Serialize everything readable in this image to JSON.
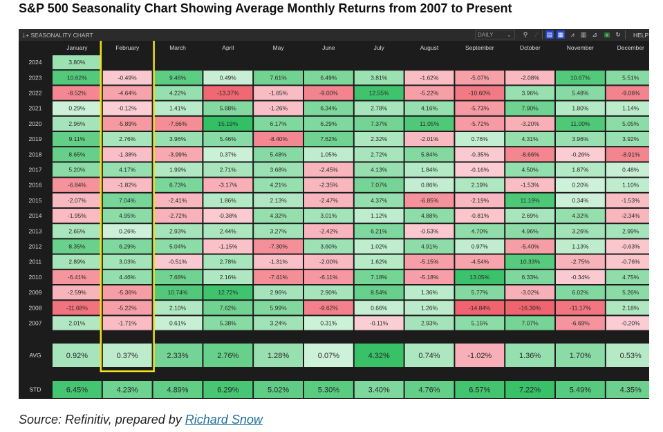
{
  "page": {
    "title": "S&P 500 Seasonality Chart Showing Average Monthly Returns from 2007 to Present",
    "source_prefix": "Source: Refinitiv, prepared by ",
    "source_author": "Richard Snow"
  },
  "toolbar": {
    "label": "SEASONALITY CHART",
    "frequency": "DAILY",
    "help": "HELP"
  },
  "chart_data": {
    "type": "heatmap",
    "title": "SEASONALITY CHART",
    "columns": [
      "January",
      "February",
      "March",
      "April",
      "May",
      "June",
      "July",
      "August",
      "September",
      "October",
      "November",
      "December"
    ],
    "highlighted_column": "February",
    "rows": [
      {
        "label": "2024",
        "values": [
          3.8,
          null,
          null,
          null,
          null,
          null,
          null,
          null,
          null,
          null,
          null,
          null
        ]
      },
      {
        "label": "2023",
        "values": [
          10.62,
          -0.49,
          9.46,
          0.49,
          7.61,
          6.49,
          3.81,
          -1.62,
          -5.07,
          -2.08,
          10.67,
          5.51
        ]
      },
      {
        "label": "2022",
        "values": [
          -8.52,
          -4.64,
          4.22,
          -13.37,
          -1.65,
          -9.0,
          12.55,
          -5.22,
          -10.6,
          3.96,
          5.48,
          -9.06
        ]
      },
      {
        "label": "2021",
        "values": [
          0.29,
          -0.12,
          1.41,
          5.88,
          -1.26,
          6.34,
          2.78,
          4.16,
          -5.73,
          7.9,
          1.8,
          1.14
        ]
      },
      {
        "label": "2020",
        "values": [
          2.96,
          -5.89,
          -7.66,
          15.19,
          6.17,
          6.29,
          7.37,
          11.05,
          -5.72,
          -3.2,
          11.0,
          5.05
        ]
      },
      {
        "label": "2019",
        "values": [
          9.11,
          2.76,
          3.96,
          5.46,
          -8.4,
          7.62,
          2.32,
          -2.01,
          0.76,
          4.31,
          3.96,
          3.92
        ]
      },
      {
        "label": "2018",
        "values": [
          8.65,
          -1.38,
          -3.99,
          0.37,
          5.48,
          1.05,
          2.72,
          5.84,
          -0.35,
          -8.66,
          -0.26,
          -8.91
        ]
      },
      {
        "label": "2017",
        "values": [
          5.2,
          4.17,
          1.99,
          2.71,
          3.68,
          -2.45,
          4.13,
          1.84,
          -0.16,
          4.5,
          1.87,
          0.48
        ]
      },
      {
        "label": "2016",
        "values": [
          -6.84,
          -1.82,
          6.73,
          -3.17,
          4.21,
          -2.35,
          7.07,
          0.86,
          2.19,
          -1.53,
          0.2,
          1.1
        ]
      },
      {
        "label": "2015",
        "values": [
          -2.07,
          7.04,
          -2.41,
          1.86,
          2.13,
          -2.47,
          4.37,
          -6.85,
          -2.19,
          11.19,
          0.34,
          -1.53
        ]
      },
      {
        "label": "2014",
        "values": [
          -1.95,
          4.95,
          -2.72,
          -0.38,
          4.32,
          3.01,
          1.12,
          4.88,
          -0.81,
          2.69,
          4.32,
          -2.34
        ]
      },
      {
        "label": "2013",
        "values": [
          2.65,
          0.26,
          2.93,
          2.44,
          3.27,
          -2.42,
          6.21,
          -0.53,
          4.7,
          4.96,
          3.26,
          2.99
        ]
      },
      {
        "label": "2012",
        "values": [
          8.35,
          6.29,
          5.04,
          -1.15,
          -7.3,
          3.6,
          1.02,
          4.91,
          0.97,
          -5.4,
          1.13,
          -0.63
        ]
      },
      {
        "label": "2011",
        "values": [
          2.89,
          3.03,
          -0.51,
          2.78,
          -1.31,
          -2.0,
          1.62,
          -5.15,
          -4.54,
          10.33,
          -2.75,
          -0.76
        ]
      },
      {
        "label": "2010",
        "values": [
          -6.41,
          4.46,
          7.68,
          2.16,
          -7.41,
          -6.11,
          7.18,
          -5.18,
          13.05,
          6.33,
          -0.34,
          4.75
        ]
      },
      {
        "label": "2009",
        "values": [
          -2.59,
          -5.36,
          10.74,
          12.72,
          2.96,
          2.9,
          8.54,
          1.36,
          5.77,
          -3.02,
          6.02,
          5.26
        ]
      },
      {
        "label": "2008",
        "values": [
          -11.68,
          -5.22,
          2.1,
          7.62,
          5.99,
          -9.62,
          0.66,
          1.26,
          -14.84,
          -16.3,
          -11.17,
          2.18
        ]
      },
      {
        "label": "2007",
        "values": [
          2.01,
          -1.71,
          0.61,
          5.38,
          3.24,
          0.31,
          -0.11,
          2.93,
          5.15,
          7.07,
          -6.69,
          -0.2
        ]
      }
    ],
    "summary_rows": [
      {
        "label": "AVG",
        "values": [
          0.92,
          0.37,
          2.33,
          2.76,
          1.28,
          0.07,
          4.32,
          0.74,
          -1.02,
          1.36,
          1.7,
          0.53
        ]
      },
      {
        "label": "STD",
        "values": [
          6.45,
          4.23,
          4.89,
          6.29,
          5.02,
          5.3,
          3.4,
          4.76,
          6.57,
          7.22,
          5.49,
          4.35
        ]
      }
    ],
    "colors": {
      "negative_strong": "#f0646f",
      "negative_light": "#fbd0d6",
      "positive_light": "#d3f3dd",
      "positive_strong": "#33bf63",
      "highlight_box": "#f2e21a",
      "background": "#1c1c1c"
    },
    "value_suffix": "%"
  }
}
